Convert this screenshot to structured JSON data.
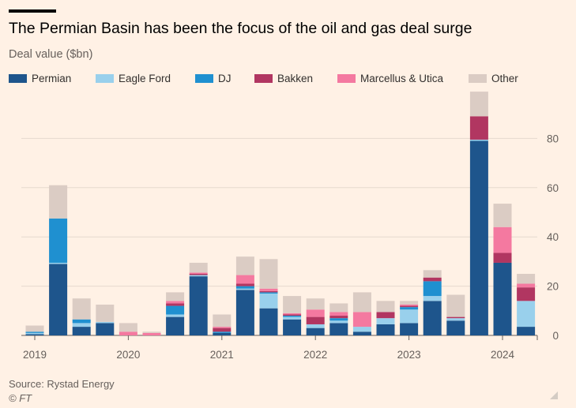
{
  "header": {
    "title": "The Permian Basin has been the focus of the oil and gas deal surge",
    "subtitle": "Deal value ($bn)"
  },
  "footer": {
    "source": "Source: Rystad Energy",
    "credit": "© FT"
  },
  "chart_data": {
    "type": "bar",
    "stacked": true,
    "title": "The Permian Basin has been the focus of the oil and gas deal surge",
    "ylabel": "Deal value ($bn)",
    "xlabel": "",
    "ylim": [
      0,
      100
    ],
    "yticks": [
      0,
      20,
      40,
      60,
      80
    ],
    "y_axis_side": "right",
    "grid": true,
    "legend_placement": "top",
    "x_tick_labels": [
      "2019",
      "2020",
      "2021",
      "2022",
      "2023",
      "2024"
    ],
    "x_tick_category_index": [
      0,
      4,
      8,
      12,
      16,
      20
    ],
    "categories": [
      "2019 Q1",
      "2019 Q2",
      "2019 Q3",
      "2019 Q4",
      "2020 Q1",
      "2020 Q2",
      "2020 Q3",
      "2020 Q4",
      "2021 Q1",
      "2021 Q2",
      "2021 Q3",
      "2021 Q4",
      "2022 Q1",
      "2022 Q2",
      "2022 Q3",
      "2022 Q4",
      "2023 Q1",
      "2023 Q2",
      "2023 Q3",
      "2023 Q4",
      "2024 Q1",
      "2024 Q2"
    ],
    "series": [
      {
        "name": "Permian",
        "color": "#1e558c",
        "values": [
          0.5,
          29,
          3.5,
          5,
          0,
          0,
          7.5,
          24,
          1,
          18.5,
          11,
          6.5,
          3,
          5,
          1.5,
          4.5,
          5,
          14,
          6,
          79,
          29.5,
          3.5
        ]
      },
      {
        "name": "Eagle Ford",
        "color": "#99d0ec",
        "values": [
          0.5,
          0.5,
          1.5,
          0.5,
          0,
          0,
          1,
          0.5,
          0,
          0.5,
          6,
          1,
          1.5,
          1,
          2,
          2.5,
          5.5,
          2,
          1,
          0.5,
          0,
          10.5
        ]
      },
      {
        "name": "DJ",
        "color": "#1f90d0",
        "values": [
          0.5,
          18,
          1.5,
          0,
          0,
          0,
          3.5,
          0,
          0.5,
          1,
          0.5,
          0.5,
          0,
          1,
          0,
          0,
          1,
          6,
          0,
          0,
          0,
          0
        ]
      },
      {
        "name": "Bakken",
        "color": "#b13661",
        "values": [
          0,
          0,
          0,
          0,
          0,
          0,
          1,
          0.5,
          1.5,
          1,
          0.5,
          0.5,
          3,
          1,
          0,
          2.5,
          0.5,
          1.5,
          0.5,
          9.5,
          4,
          5.5
        ]
      },
      {
        "name": "Marcellus & Utica",
        "color": "#f479a0",
        "values": [
          0,
          0,
          0,
          0,
          1.5,
          1,
          1,
          0.5,
          0.5,
          3.5,
          1,
          0.5,
          3,
          1.5,
          6,
          0,
          0.5,
          0,
          0,
          0,
          10.5,
          1.5
        ]
      },
      {
        "name": "Other",
        "color": "#dbccc4",
        "values": [
          2.5,
          13.5,
          8.5,
          7,
          3.5,
          0.5,
          3.5,
          4,
          5,
          7.5,
          12,
          7,
          4.5,
          3.5,
          8,
          4.5,
          1.5,
          3,
          9,
          10,
          9.5,
          4
        ]
      }
    ]
  }
}
